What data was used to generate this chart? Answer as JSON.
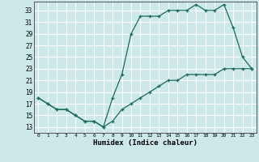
{
  "xlabel": "Humidex (Indice chaleur)",
  "ylabel": "",
  "bg_color": "#cce8e8",
  "grid_color": "#ffffff",
  "line_color": "#1a6b5a",
  "xlim": [
    -0.5,
    23.5
  ],
  "ylim": [
    12,
    34.5
  ],
  "xticks": [
    0,
    1,
    2,
    3,
    4,
    5,
    6,
    7,
    8,
    9,
    10,
    11,
    12,
    13,
    14,
    15,
    16,
    17,
    18,
    19,
    20,
    21,
    22,
    23
  ],
  "yticks": [
    13,
    15,
    17,
    19,
    21,
    23,
    25,
    27,
    29,
    31,
    33
  ],
  "curve1_x": [
    0,
    1,
    2,
    3,
    4,
    5,
    6,
    7,
    8,
    9,
    10,
    11,
    12,
    13,
    14,
    15,
    16,
    17,
    18,
    19,
    20,
    21,
    22,
    23
  ],
  "curve1_y": [
    18,
    17,
    16,
    16,
    15,
    14,
    14,
    13,
    18,
    22,
    29,
    32,
    32,
    32,
    33,
    33,
    33,
    34,
    33,
    33,
    34,
    30,
    25,
    23
  ],
  "curve2_x": [
    0,
    1,
    2,
    3,
    4,
    5,
    6,
    7,
    8,
    9,
    10,
    11,
    12,
    13,
    14,
    15,
    16,
    17,
    18,
    19,
    20,
    21,
    22,
    23
  ],
  "curve2_y": [
    18,
    17,
    16,
    16,
    15,
    14,
    14,
    13,
    14,
    16,
    17,
    18,
    19,
    20,
    21,
    21,
    22,
    22,
    22,
    22,
    23,
    23,
    23,
    23
  ]
}
